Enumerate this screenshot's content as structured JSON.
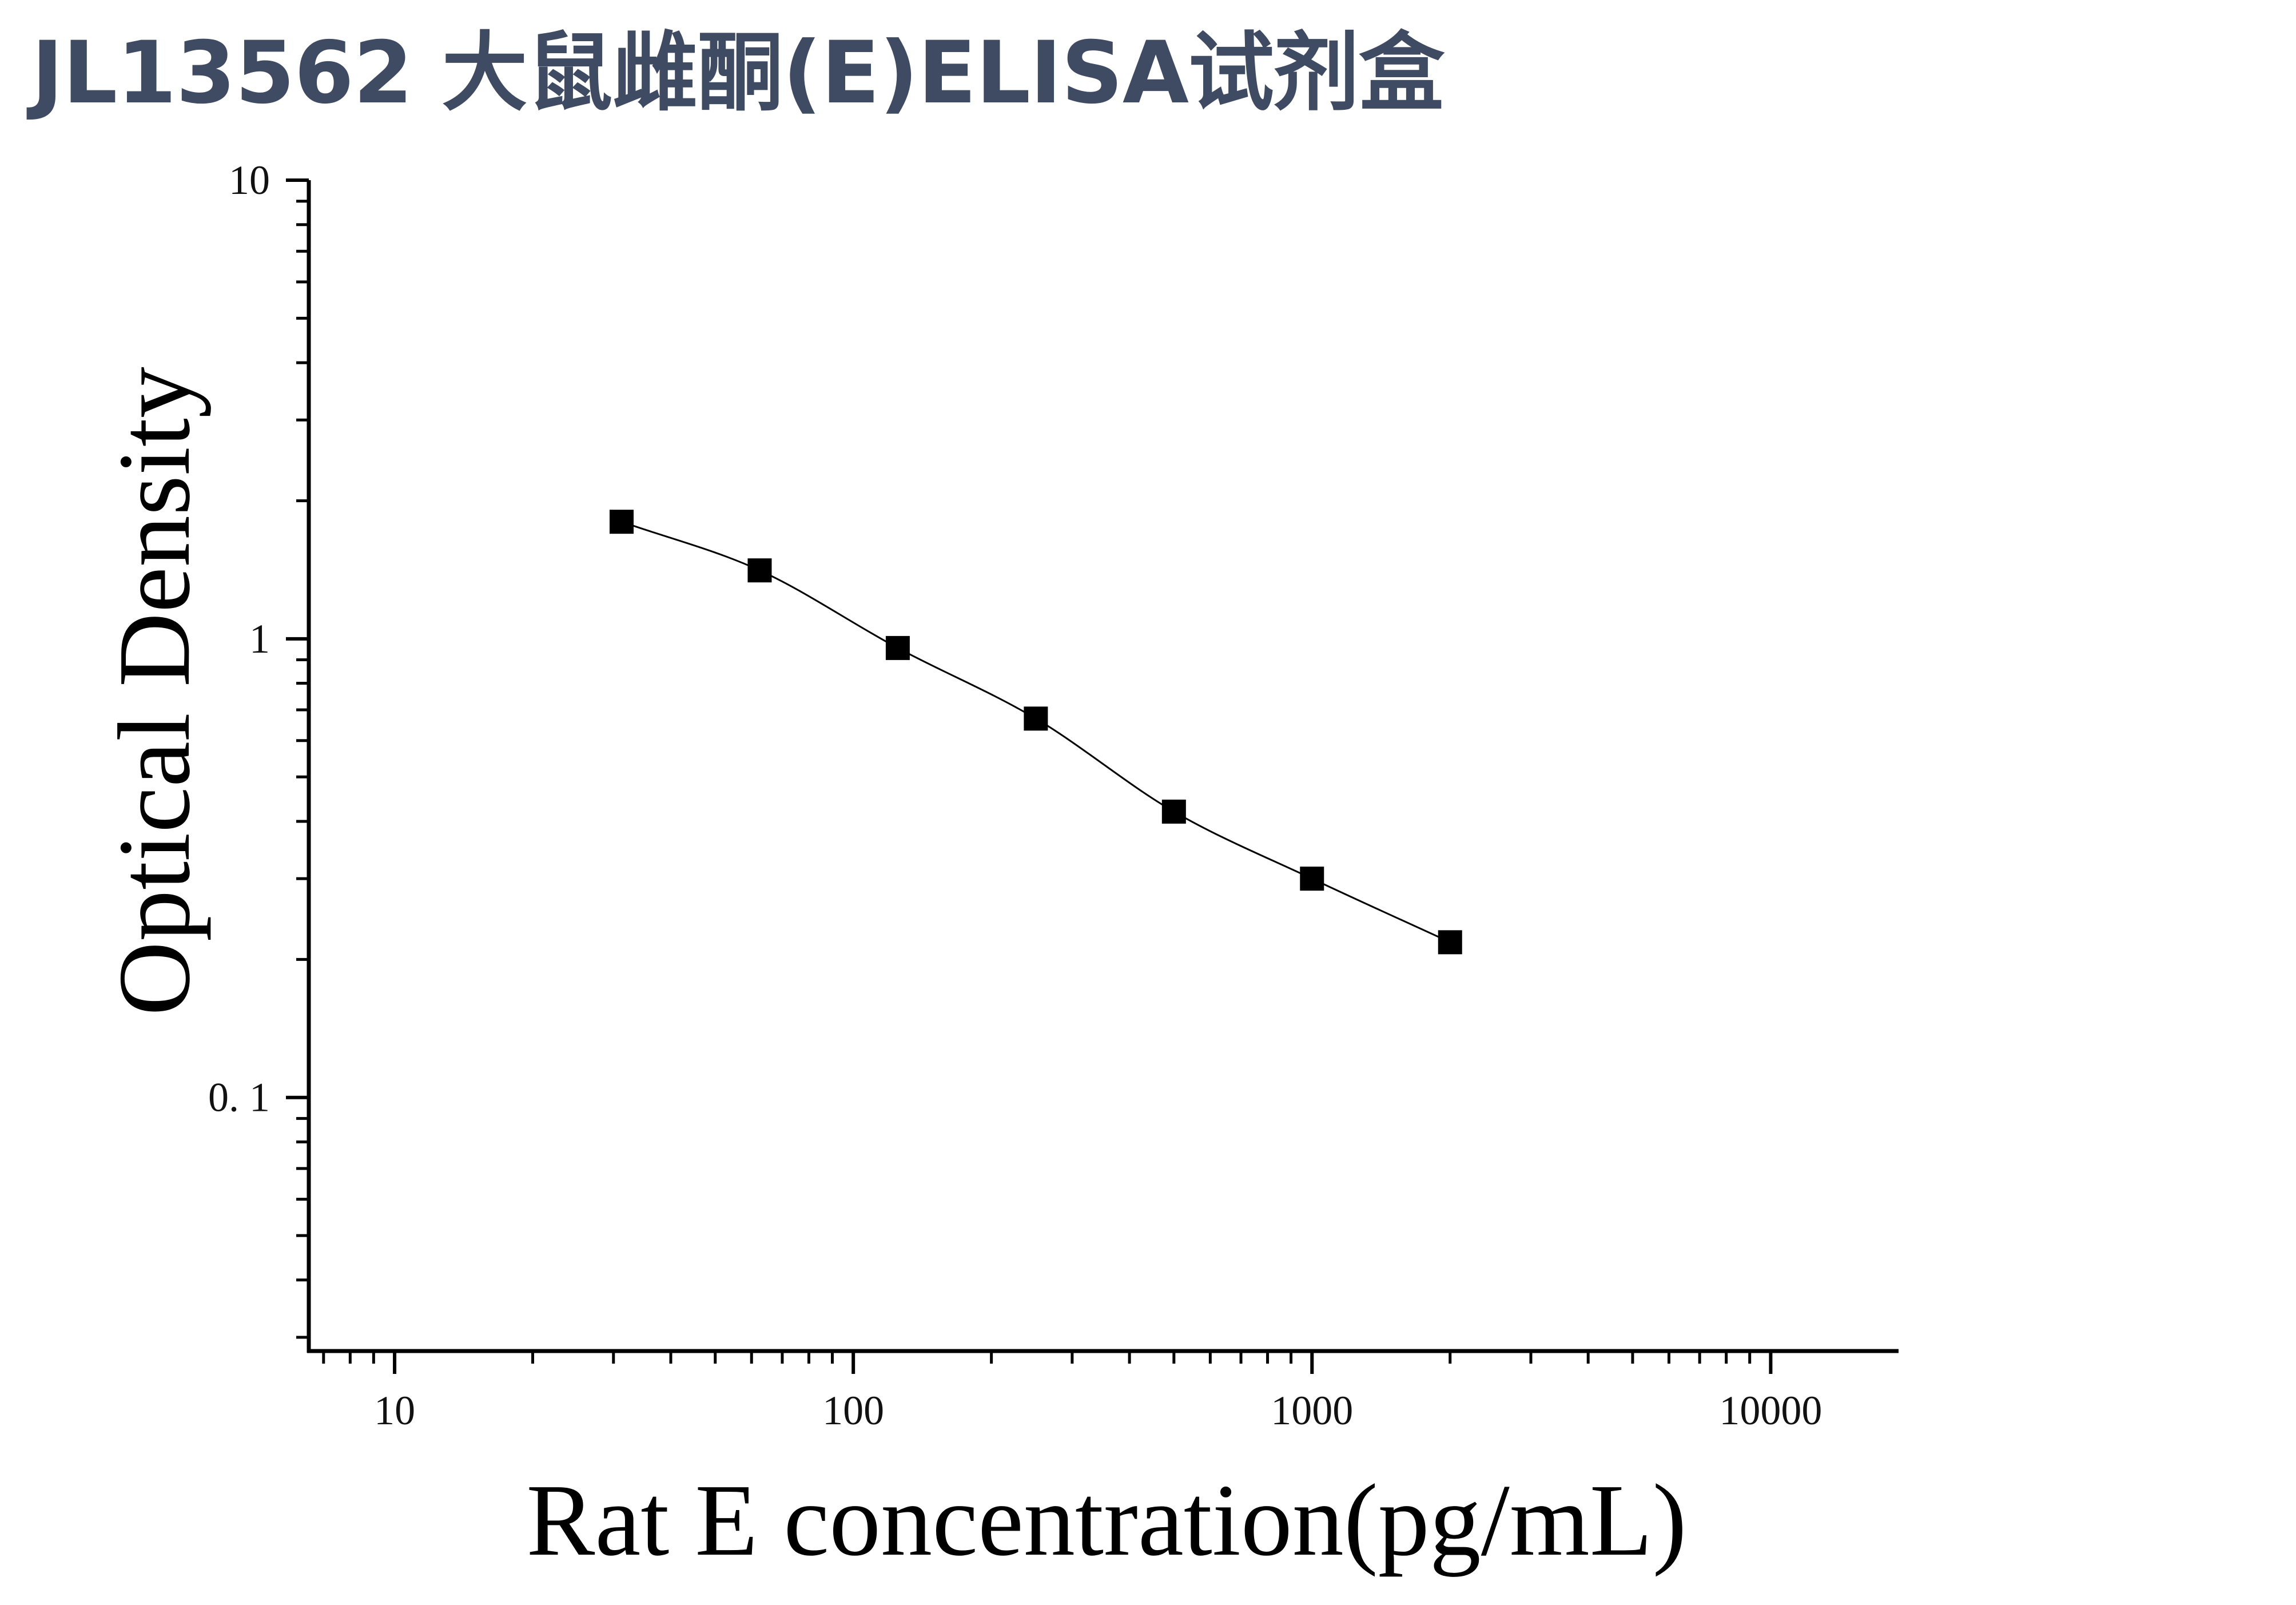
{
  "title": "JL13562 大鼠雌酮(E)ELISA试剂盒",
  "chart_data": {
    "type": "scatter",
    "xlabel": "Rat E concentration(pg/mL)",
    "ylabel": "Optical Density",
    "xscale": "log",
    "yscale": "log",
    "xlim": [
      6.5,
      19000
    ],
    "ylim": [
      0.028,
      10
    ],
    "xticks": [
      {
        "value": 10,
        "label": "10"
      },
      {
        "value": 100,
        "label": "100"
      },
      {
        "value": 1000,
        "label": "1000"
      },
      {
        "value": 10000,
        "label": "10000"
      }
    ],
    "yticks": [
      {
        "value": 10,
        "label": "10"
      },
      {
        "value": 1,
        "label": "1"
      },
      {
        "value": 0.1,
        "label": "0. 1"
      }
    ],
    "series": [
      {
        "marker": "square",
        "fit_line": "curve",
        "color": "#000000",
        "x": [
          31.25,
          62.5,
          125,
          250,
          500,
          1000,
          2000
        ],
        "y": [
          1.8,
          1.41,
          0.955,
          0.67,
          0.42,
          0.3,
          0.218
        ]
      }
    ]
  }
}
